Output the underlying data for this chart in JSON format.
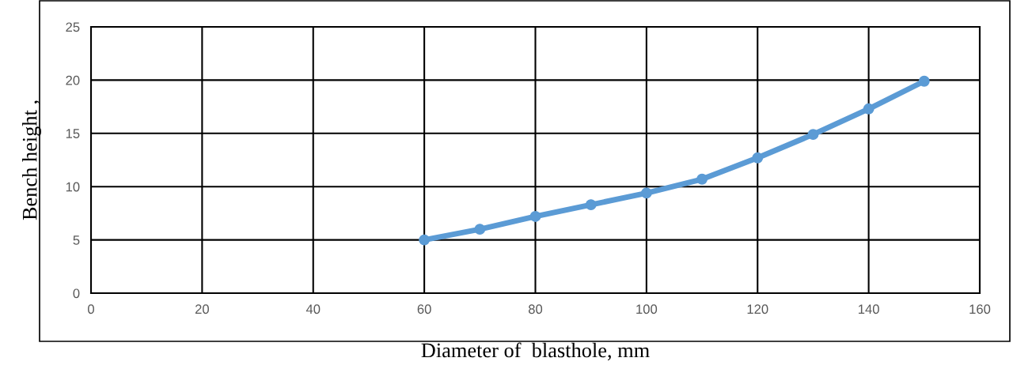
{
  "chart_data": {
    "type": "line",
    "xlabel": "Diameter of  blasthole, mm",
    "ylabel": "Bench height ,",
    "x": [
      60,
      70,
      80,
      90,
      100,
      110,
      120,
      130,
      140,
      150
    ],
    "series": [
      {
        "color": "#5b9bd5",
        "values": [
          5.0,
          6.0,
          7.2,
          8.3,
          9.4,
          10.7,
          12.7,
          14.9,
          17.3,
          19.9
        ]
      }
    ],
    "xlim": [
      0,
      160
    ],
    "xticks": [
      0,
      20,
      40,
      60,
      80,
      100,
      120,
      140,
      160
    ],
    "ylim": [
      0,
      25
    ],
    "yticks": [
      0,
      5,
      10,
      15,
      20,
      25
    ],
    "grid": true,
    "marker": "circle",
    "line_style": "solid"
  }
}
